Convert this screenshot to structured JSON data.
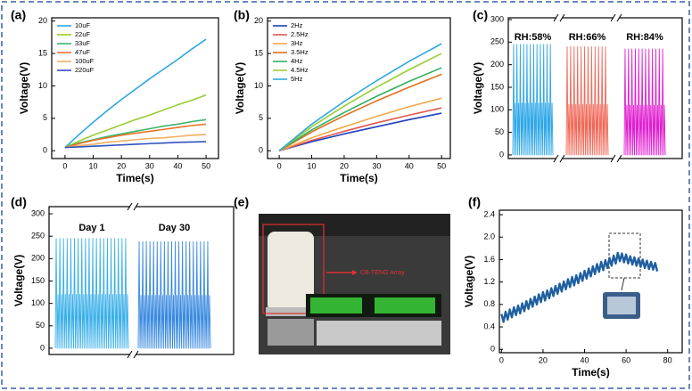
{
  "chart_data": [
    {
      "label": "(a)",
      "type": "line",
      "xlabel": "Time(s)",
      "ylabel": "Voltage(V)",
      "x": [
        0,
        5,
        10,
        15,
        20,
        25,
        30,
        35,
        40,
        45,
        50
      ],
      "series": [
        {
          "name": "10uF",
          "color": "#2ea8e0",
          "values": [
            0.5,
            2.5,
            4.4,
            6.2,
            7.9,
            9.5,
            11.1,
            12.6,
            14.1,
            15.7,
            17.2
          ]
        },
        {
          "name": "22uF",
          "color": "#9acd32",
          "values": [
            0.5,
            1.5,
            2.4,
            3.2,
            4.0,
            4.8,
            5.5,
            6.3,
            7.1,
            7.8,
            8.6
          ]
        },
        {
          "name": "33uF",
          "color": "#3cb371",
          "values": [
            0.5,
            1.2,
            1.7,
            2.2,
            2.6,
            3.0,
            3.4,
            3.8,
            4.1,
            4.5,
            4.8
          ]
        },
        {
          "name": "47uF",
          "color": "#e8732a",
          "values": [
            0.5,
            1.1,
            1.6,
            2.0,
            2.4,
            2.7,
            3.0,
            3.3,
            3.6,
            3.9,
            4.1
          ]
        },
        {
          "name": "100uF",
          "color": "#f0b060",
          "values": [
            0.5,
            0.8,
            1.0,
            1.3,
            1.5,
            1.7,
            1.9,
            2.0,
            2.2,
            2.4,
            2.5
          ]
        },
        {
          "name": "220uF",
          "color": "#3050c0",
          "values": [
            0.5,
            0.6,
            0.7,
            0.8,
            0.9,
            1.0,
            1.1,
            1.2,
            1.3,
            1.35,
            1.4
          ]
        }
      ],
      "xlim": [
        -4.7,
        54.4
      ],
      "ylim": [
        -1.2,
        20.5
      ],
      "xticks": [
        0,
        10,
        20,
        30,
        40,
        50
      ],
      "yticks": [
        0,
        5,
        10,
        15,
        20
      ],
      "legend": "upper left"
    },
    {
      "label": "(b)",
      "type": "line",
      "xlabel": "Time(s)",
      "ylabel": "Voltage(V)",
      "x": [
        0,
        10,
        20,
        30,
        40,
        50
      ],
      "series": [
        {
          "name": "2Hz",
          "color": "#2040c0",
          "values": [
            0,
            1.4,
            2.6,
            3.7,
            4.8,
            5.8
          ]
        },
        {
          "name": "2.5Hz",
          "color": "#e05a50",
          "values": [
            0,
            1.6,
            3.0,
            4.3,
            5.5,
            6.6
          ]
        },
        {
          "name": "3Hz",
          "color": "#f0a848",
          "values": [
            0,
            2.0,
            3.7,
            5.3,
            6.8,
            8.1
          ]
        },
        {
          "name": "3.5Hz",
          "color": "#e07020",
          "values": [
            0,
            2.9,
            5.4,
            7.7,
            9.8,
            11.8
          ]
        },
        {
          "name": "4Hz",
          "color": "#30b060",
          "values": [
            0,
            3.2,
            5.9,
            8.4,
            10.7,
            12.8
          ]
        },
        {
          "name": "4.5Hz",
          "color": "#9acd32",
          "values": [
            0,
            3.7,
            6.9,
            9.8,
            12.5,
            15.0
          ]
        },
        {
          "name": "5Hz",
          "color": "#30a8e0",
          "values": [
            0,
            4.1,
            7.6,
            10.8,
            13.8,
            16.5
          ]
        }
      ],
      "xlim": [
        -3.6,
        52.7
      ],
      "ylim": [
        -1.2,
        20.5
      ],
      "xticks": [
        0,
        10,
        20,
        30,
        40,
        50
      ],
      "yticks": [
        0,
        5,
        10,
        15,
        20
      ],
      "legend": "upper left"
    },
    {
      "label": "(c)",
      "type": "line",
      "ylabel": "Voltage(V)",
      "series": [
        {
          "name": "RH:58%",
          "color": "#30a8e8",
          "values": [
            0,
            245,
            0,
            115,
            0,
            245,
            0,
            115,
            0,
            245,
            0,
            115,
            0,
            245,
            0,
            115,
            0,
            245,
            0,
            115,
            0,
            245,
            0,
            115,
            0,
            245,
            0,
            115,
            0,
            245,
            0,
            115,
            0,
            245,
            0,
            115,
            0,
            245,
            0,
            115,
            0,
            245,
            0,
            115,
            0,
            245,
            0,
            115,
            0
          ]
        },
        {
          "name": "RH:66%",
          "color": "#f06a5a",
          "values": [
            0,
            240,
            0,
            112,
            0,
            240,
            0,
            112,
            0,
            240,
            0,
            112,
            0,
            240,
            0,
            112,
            0,
            240,
            0,
            112,
            0,
            240,
            0,
            112,
            0,
            240,
            0,
            112,
            0,
            240,
            0,
            112,
            0,
            240,
            0,
            112,
            0,
            240,
            0,
            112,
            0,
            240,
            0,
            112,
            0,
            240,
            0,
            112,
            0
          ]
        },
        {
          "name": "RH:84%",
          "color": "#e020d0",
          "values": [
            0,
            235,
            0,
            110,
            0,
            235,
            0,
            110,
            0,
            235,
            0,
            110,
            0,
            235,
            0,
            110,
            0,
            235,
            0,
            110,
            0,
            235,
            0,
            110,
            0,
            235,
            0,
            110,
            0,
            235,
            0,
            110,
            0,
            235,
            0,
            110,
            0,
            235,
            0,
            110,
            0,
            235,
            0,
            110,
            0,
            235,
            0,
            110,
            0
          ]
        }
      ],
      "ylim": [
        -8,
        304
      ],
      "yticks": [
        0,
        50,
        100,
        150,
        200,
        250,
        300
      ]
    },
    {
      "label": "(d)",
      "type": "line",
      "ylabel": "Voltage(V)",
      "series": [
        {
          "name": "Day 1",
          "color": "#3ab0e8",
          "values": [
            0,
            245,
            0,
            120,
            0,
            245,
            0,
            120,
            0,
            245,
            0,
            120,
            0,
            245,
            0,
            120,
            0,
            245,
            0,
            120,
            0,
            245,
            0,
            120,
            0,
            245,
            0,
            120,
            0,
            245,
            0,
            120,
            0,
            245,
            0,
            120,
            0,
            245,
            0,
            120,
            0,
            245,
            0,
            120,
            0,
            245,
            0,
            120,
            0,
            245,
            0,
            120,
            0,
            245,
            0,
            120,
            0,
            245,
            0,
            120,
            0,
            245,
            0,
            120,
            0,
            245,
            0,
            120,
            0,
            245,
            0,
            120,
            0,
            245,
            0,
            120,
            0,
            245,
            0,
            120,
            0
          ]
        },
        {
          "name": "Day 30",
          "color": "#3a8ae0",
          "values": [
            0,
            238,
            0,
            118,
            0,
            238,
            0,
            118,
            0,
            238,
            0,
            118,
            0,
            238,
            0,
            118,
            0,
            238,
            0,
            118,
            0,
            238,
            0,
            118,
            0,
            238,
            0,
            118,
            0,
            238,
            0,
            118,
            0,
            238,
            0,
            118,
            0,
            238,
            0,
            118,
            0,
            238,
            0,
            118,
            0,
            238,
            0,
            118,
            0,
            238,
            0,
            118,
            0,
            238,
            0,
            118,
            0,
            238,
            0,
            118,
            0,
            238,
            0,
            118,
            0,
            238,
            0,
            118,
            0,
            238,
            0,
            118,
            0,
            238,
            0,
            118,
            0,
            238,
            0,
            118,
            0
          ]
        }
      ],
      "ylim": [
        -14,
        316
      ],
      "yticks": [
        0,
        50,
        100,
        150,
        200,
        250,
        300
      ]
    },
    {
      "label": "(f)",
      "type": "line",
      "xlabel": "Time(s)",
      "ylabel": "Voltage(V)",
      "color": "#1f5fa0",
      "x": [
        0,
        1,
        2,
        3,
        4,
        5,
        6,
        7,
        8,
        9,
        10,
        11,
        12,
        13,
        14,
        15,
        16,
        17,
        18,
        19,
        20,
        21,
        22,
        23,
        24,
        25,
        26,
        27,
        28,
        29,
        30,
        31,
        32,
        33,
        34,
        35,
        36,
        37,
        38,
        39,
        40,
        41,
        42,
        43,
        44,
        45,
        46,
        47,
        48,
        49,
        50,
        51,
        52,
        53,
        54,
        55,
        56,
        57,
        58,
        59,
        60,
        61,
        62,
        63,
        64,
        65,
        66,
        67,
        68,
        69,
        70,
        71,
        72,
        73,
        74,
        75
      ],
      "values": [
        0.63,
        0.49,
        0.67,
        0.53,
        0.71,
        0.57,
        0.75,
        0.61,
        0.78,
        0.64,
        0.82,
        0.68,
        0.86,
        0.72,
        0.9,
        0.76,
        0.94,
        0.8,
        0.98,
        0.84,
        1.02,
        0.87,
        1.05,
        0.91,
        1.09,
        0.95,
        1.13,
        0.99,
        1.17,
        1.03,
        1.21,
        1.07,
        1.25,
        1.11,
        1.29,
        1.14,
        1.32,
        1.18,
        1.36,
        1.22,
        1.4,
        1.26,
        1.44,
        1.3,
        1.48,
        1.34,
        1.52,
        1.38,
        1.56,
        1.41,
        1.59,
        1.45,
        1.63,
        1.49,
        1.67,
        1.53,
        1.72,
        1.57,
        1.71,
        1.55,
        1.69,
        1.53,
        1.66,
        1.51,
        1.64,
        1.49,
        1.62,
        1.47,
        1.6,
        1.45,
        1.58,
        1.43,
        1.56,
        1.42,
        1.54,
        1.39
      ],
      "xlim": [
        -1,
        87
      ],
      "ylim": [
        -0.06,
        2.48
      ],
      "xticks": [
        0,
        20,
        40,
        60,
        80
      ],
      "yticks": [
        0,
        0.4,
        0.8,
        1.2,
        1.6,
        {
          "value": 2,
          "label": "2.0"
        },
        2.4
      ]
    }
  ],
  "photo": {
    "label": "(e)",
    "annotation": "CB-TENG Array"
  }
}
